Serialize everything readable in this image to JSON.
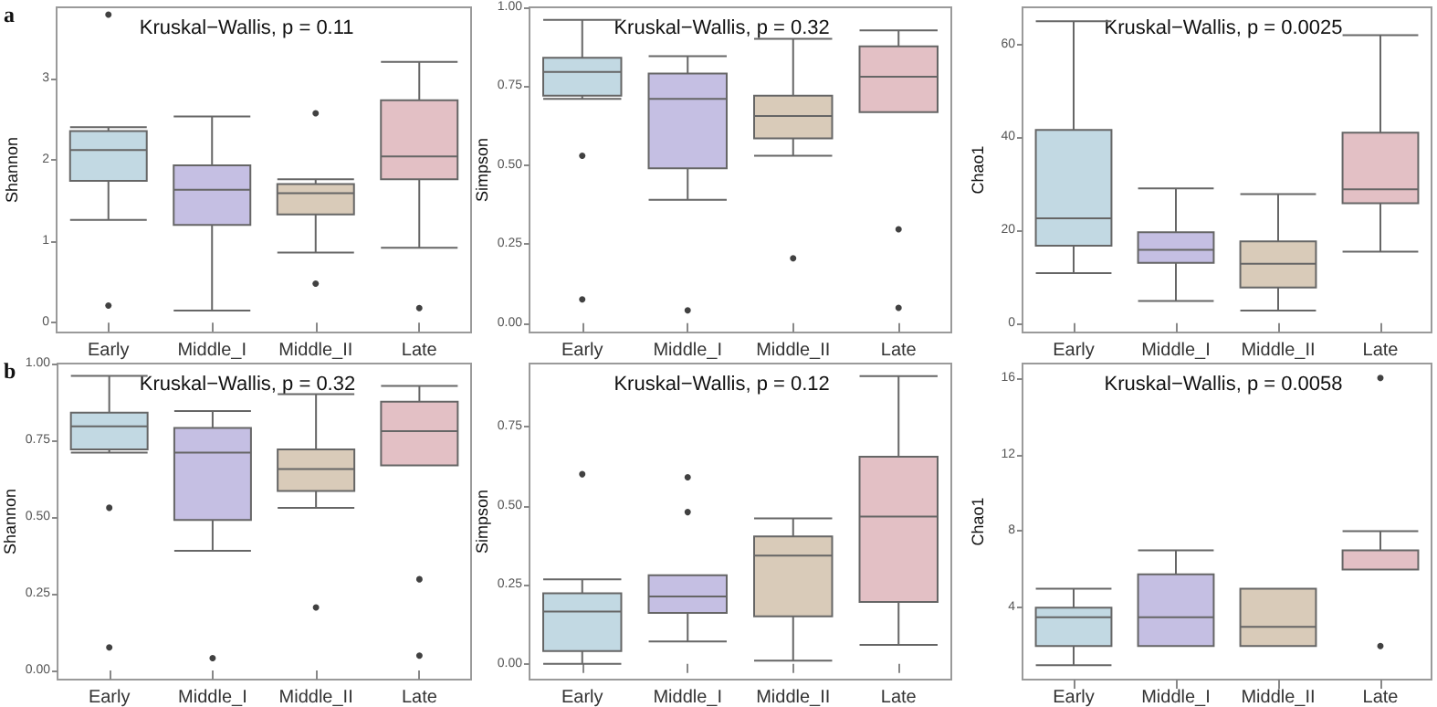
{
  "chart_data": [
    {
      "type": "box",
      "ylabel": "Shannon",
      "categories": [
        "Early",
        "Middle_I",
        "Middle_II",
        "Late"
      ],
      "colors": [
        "#c2d9e3",
        "#c5bfe3",
        "#d9cbb9",
        "#e3c0c5"
      ],
      "ylim": [
        -0.12,
        3.87
      ],
      "yticks": [
        0,
        1,
        2,
        3
      ],
      "annotations": [
        "a",
        "Kruskal−Wallis, p = 0.11"
      ],
      "boxes": [
        {
          "low": 1.26,
          "q1": 1.74,
          "median": 2.12,
          "q3": 2.35,
          "high": 2.4,
          "outliers": [
            0.21,
            3.78
          ]
        },
        {
          "low": 0.15,
          "q1": 1.2,
          "median": 1.63,
          "q3": 1.93,
          "high": 2.53
        },
        {
          "low": 0.86,
          "q1": 1.33,
          "median": 1.59,
          "q3": 1.7,
          "high": 1.76,
          "outliers": [
            0.48,
            2.57
          ]
        },
        {
          "low": 0.92,
          "q1": 1.76,
          "median": 2.04,
          "q3": 2.73,
          "high": 3.2,
          "outliers": [
            0.18
          ]
        }
      ]
    },
    {
      "type": "box",
      "ylabel": "Simpson",
      "categories": [
        "Early",
        "Middle_I",
        "Middle_II",
        "Late"
      ],
      "colors": [
        "#c2d9e3",
        "#c5bfe3",
        "#d9cbb9",
        "#e3c0c5"
      ],
      "ylim": [
        -0.03,
        1.0
      ],
      "yticks": [
        {
          "value": 0,
          "label": "0.00"
        },
        {
          "value": 0.25,
          "label": "0.25"
        },
        {
          "value": 0.5,
          "label": "0.50"
        },
        {
          "value": 0.75,
          "label": "0.75"
        },
        {
          "value": 1,
          "label": "1.00"
        }
      ],
      "annotations": [
        "Kruskal−Wallis, p = 0.32"
      ],
      "boxes": [
        {
          "low": 0.71,
          "q1": 0.72,
          "median": 0.795,
          "q3": 0.84,
          "high": 0.96,
          "outliers": [
            0.53,
            0.075
          ]
        },
        {
          "low": 0.39,
          "q1": 0.49,
          "median": 0.71,
          "q3": 0.79,
          "high": 0.845,
          "outliers": [
            0.04
          ]
        },
        {
          "low": 0.53,
          "q1": 0.585,
          "median": 0.656,
          "q3": 0.72,
          "high": 0.9,
          "outliers": [
            0.205
          ]
        },
        {
          "low": 0.668,
          "q1": 0.668,
          "median": 0.78,
          "q3": 0.876,
          "high": 0.927,
          "outliers": [
            0.297,
            0.048
          ]
        }
      ]
    },
    {
      "type": "box",
      "ylabel": "Chao1",
      "categories": [
        "Early",
        "Middle_I",
        "Middle_II",
        "Late"
      ],
      "colors": [
        "#c2d9e3",
        "#c5bfe3",
        "#d9cbb9",
        "#e3c0c5"
      ],
      "ylim": [
        -2,
        68
      ],
      "yticks": [
        0,
        20,
        40,
        60
      ],
      "annotations": [
        "Kruskal−Wallis, p = 0.0025"
      ],
      "boxes": [
        {
          "low": 10.8,
          "q1": 16.7,
          "median": 22.6,
          "q3": 41.6,
          "high": 65
        },
        {
          "low": 4.8,
          "q1": 13,
          "median": 15.8,
          "q3": 19.6,
          "high": 29
        },
        {
          "low": 2.7,
          "q1": 7.7,
          "median": 12.8,
          "q3": 17.6,
          "high": 27.8
        },
        {
          "low": 15.4,
          "q1": 25.8,
          "median": 28.8,
          "q3": 41,
          "high": 62
        }
      ]
    },
    {
      "type": "box",
      "ylabel": "Shannon",
      "categories": [
        "Early",
        "Middle_I",
        "Middle_II",
        "Late"
      ],
      "colors": [
        "#c2d9e3",
        "#c5bfe3",
        "#d9cbb9",
        "#e3c0c5"
      ],
      "ylim": [
        -0.03,
        1.0
      ],
      "yticks": [
        {
          "value": 0,
          "label": "0.00"
        },
        {
          "value": 0.25,
          "label": "0.25"
        },
        {
          "value": 0.5,
          "label": "0.50"
        },
        {
          "value": 0.75,
          "label": "0.75"
        },
        {
          "value": 1,
          "label": "1.00"
        }
      ],
      "annotations": [
        "b",
        "Kruskal−Wallis, p = 0.32"
      ],
      "boxes": [
        {
          "low": 0.71,
          "q1": 0.72,
          "median": 0.795,
          "q3": 0.84,
          "high": 0.96,
          "outliers": [
            0.53,
            0.075
          ]
        },
        {
          "low": 0.39,
          "q1": 0.49,
          "median": 0.71,
          "q3": 0.79,
          "high": 0.845,
          "outliers": [
            0.04
          ]
        },
        {
          "low": 0.53,
          "q1": 0.585,
          "median": 0.656,
          "q3": 0.72,
          "high": 0.9,
          "outliers": [
            0.205
          ]
        },
        {
          "low": 0.668,
          "q1": 0.668,
          "median": 0.78,
          "q3": 0.876,
          "high": 0.927,
          "outliers": [
            0.297,
            0.048
          ]
        }
      ]
    },
    {
      "type": "box",
      "ylabel": "Simpson",
      "categories": [
        "Early",
        "Middle_I",
        "Middle_II",
        "Late"
      ],
      "colors": [
        "#c2d9e3",
        "#c5bfe3",
        "#d9cbb9",
        "#e3c0c5"
      ],
      "ylim": [
        -0.05,
        0.95
      ],
      "yticks": [
        {
          "value": 0,
          "label": "0.00"
        },
        {
          "value": 0.25,
          "label": "0.25"
        },
        {
          "value": 0.5,
          "label": "0.50"
        },
        {
          "value": 0.75,
          "label": "0.75"
        }
      ],
      "annotations": [
        "Kruskal−Wallis, p = 0.12"
      ],
      "boxes": [
        {
          "low": 0,
          "q1": 0.04,
          "median": 0.165,
          "q3": 0.223,
          "high": 0.267,
          "outliers": [
            0.6
          ]
        },
        {
          "low": 0.071,
          "q1": 0.161,
          "median": 0.213,
          "q3": 0.28,
          "high": 0.28,
          "outliers": [
            0.48,
            0.59
          ]
        },
        {
          "low": 0.01,
          "q1": 0.15,
          "median": 0.342,
          "q3": 0.403,
          "high": 0.46
        },
        {
          "low": 0.06,
          "q1": 0.196,
          "median": 0.466,
          "q3": 0.655,
          "high": 0.91
        }
      ]
    },
    {
      "type": "box",
      "ylabel": "Chao1",
      "categories": [
        "Early",
        "Middle_I",
        "Middle_II",
        "Late"
      ],
      "colors": [
        "#c2d9e3",
        "#c5bfe3",
        "#d9cbb9",
        "#e3c0c5"
      ],
      "ylim": [
        0.25,
        16.75
      ],
      "yticks": [
        4,
        8,
        12,
        16
      ],
      "annotations": [
        "Kruskal−Wallis, p = 0.0058"
      ],
      "boxes": [
        {
          "low": 1,
          "q1": 2,
          "median": 3.5,
          "q3": 4,
          "high": 5
        },
        {
          "low": 2,
          "q1": 2,
          "median": 3.5,
          "q3": 5.75,
          "high": 7
        },
        {
          "low": 2,
          "q1": 2,
          "median": 3,
          "q3": 5,
          "high": 5
        },
        {
          "low": 6,
          "q1": 6,
          "median": 7,
          "q3": 7,
          "high": 8,
          "outliers": [
            2,
            16
          ]
        }
      ]
    }
  ]
}
